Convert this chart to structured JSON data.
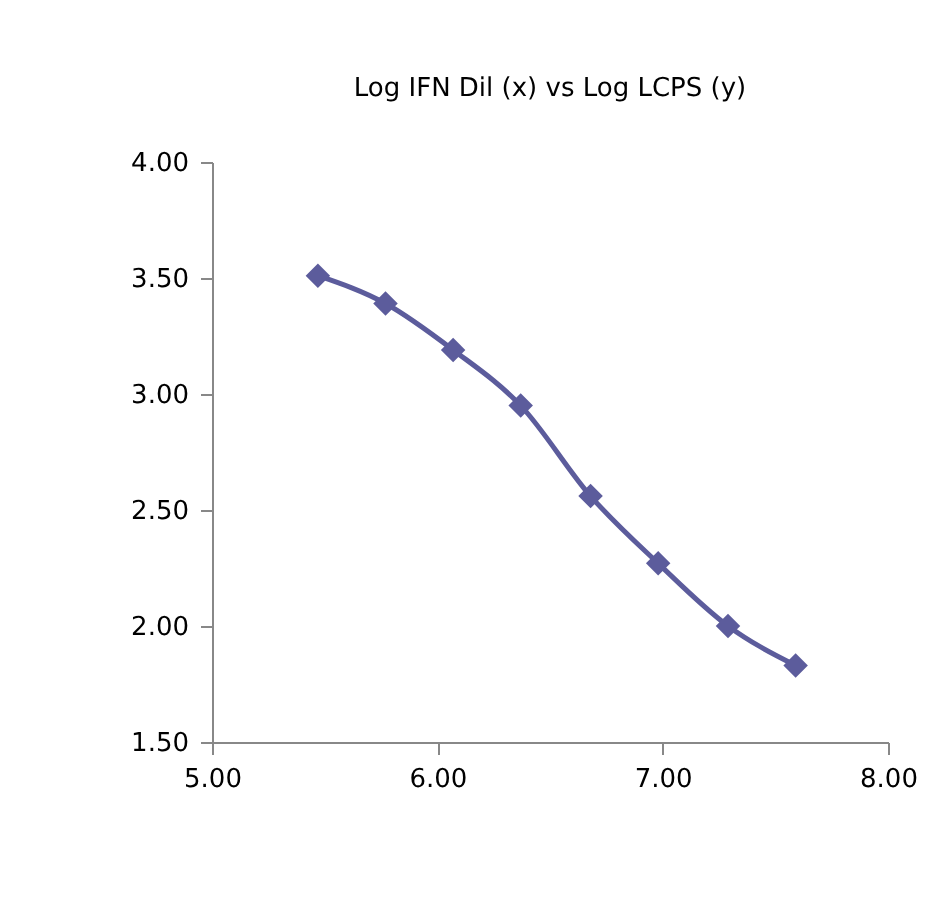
{
  "chart_data": {
    "type": "line",
    "title": "Log IFN Dil  (x) vs Log LCPS (y)",
    "x": [
      5.47,
      5.77,
      6.07,
      6.37,
      6.68,
      6.98,
      7.29,
      7.59
    ],
    "series": [
      {
        "color": "#5c5c9c",
        "values": [
          3.51,
          3.39,
          3.19,
          2.95,
          2.56,
          2.27,
          2.0,
          1.83
        ]
      }
    ],
    "xlim": [
      5,
      8
    ],
    "xticks": [
      {
        "value": 5,
        "label": "5.00"
      },
      {
        "value": 6,
        "label": "6.00"
      },
      {
        "value": 7,
        "label": "7.00"
      },
      {
        "value": 8,
        "label": "8.00"
      }
    ],
    "ylim": [
      1.5,
      4
    ],
    "yticks": [
      {
        "value": 1.5,
        "label": "1.50"
      },
      {
        "value": 2,
        "label": "2.00"
      },
      {
        "value": 2.5,
        "label": "2.50"
      },
      {
        "value": 3,
        "label": "3.00"
      },
      {
        "value": 3.5,
        "label": "3.50"
      },
      {
        "value": 4,
        "label": "4.00"
      }
    ],
    "marker": "diamond",
    "line_style": "solid",
    "grid": false,
    "legend": false
  }
}
